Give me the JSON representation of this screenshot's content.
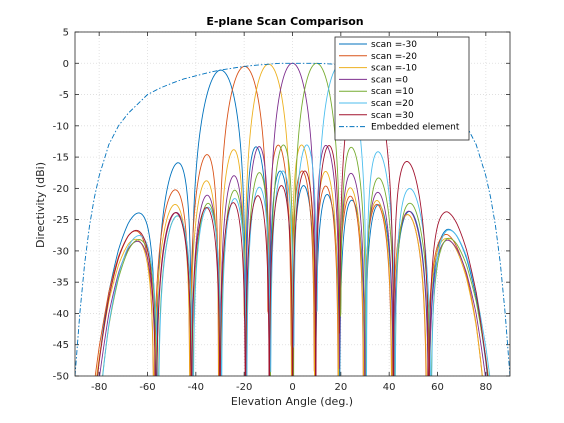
{
  "chart_data": {
    "type": "line",
    "title": "E-plane Scan Comparison",
    "xlabel": "Elevation Angle (deg.)",
    "ylabel": "Directivity (dBi)",
    "xlim": [
      -90,
      90
    ],
    "ylim": [
      -50,
      5
    ],
    "xticks": [
      -80,
      -60,
      -40,
      -20,
      0,
      20,
      40,
      60,
      80
    ],
    "yticks": [
      5,
      0,
      -5,
      -10,
      -15,
      -20,
      -25,
      -30,
      -35,
      -40,
      -45,
      -50
    ],
    "xtick_labels": [
      "-80",
      "-60",
      "-40",
      "-20",
      "0",
      "20",
      "40",
      "60",
      "80"
    ],
    "ytick_labels": [
      "5",
      "0",
      "-5",
      "-10",
      "-15",
      "-20",
      "-25",
      "-30",
      "-35",
      "-40",
      "-45",
      "-50"
    ],
    "grid": true,
    "legend_position": "top-right",
    "series": [
      {
        "name": "scan =-30",
        "color": "#0072BD",
        "style": "solid",
        "scan_deg": -30,
        "peak_db": 0,
        "sidelobe_peaks_db": [
          [
            -48,
            -15.8
          ],
          [
            -68,
            -24.5
          ],
          [
            -10,
            -20
          ],
          [
            20,
            -23
          ],
          [
            40,
            -25
          ]
        ]
      },
      {
        "name": "scan =-20",
        "color": "#D95319",
        "style": "solid",
        "scan_deg": -20,
        "peak_db": 0,
        "sidelobe_peaks_db": [
          [
            -36,
            -14.5
          ],
          [
            -56,
            -21
          ],
          [
            0,
            -17
          ],
          [
            24,
            -21
          ],
          [
            50,
            -25
          ]
        ]
      },
      {
        "name": "scan =-10",
        "color": "#EDB120",
        "style": "solid",
        "scan_deg": -10,
        "peak_db": 0,
        "sidelobe_peaks_db": [
          [
            -26,
            -13.5
          ],
          [
            -46,
            -20
          ],
          [
            10,
            -14.5
          ],
          [
            34,
            -20
          ],
          [
            60,
            -25
          ]
        ]
      },
      {
        "name": "scan =0",
        "color": "#7E2F8E",
        "style": "solid",
        "scan_deg": 0,
        "peak_db": 0,
        "sidelobe_peaks_db": [
          [
            -16,
            -13.5
          ],
          [
            16,
            -13.5
          ],
          [
            -36,
            -18
          ],
          [
            36,
            -18
          ],
          [
            -60,
            -24
          ],
          [
            60,
            -24
          ]
        ]
      },
      {
        "name": "scan =10",
        "color": "#77AC30",
        "style": "solid",
        "scan_deg": 10,
        "peak_db": 0,
        "sidelobe_peaks_db": [
          [
            26,
            -13.5
          ],
          [
            46,
            -20
          ],
          [
            -10,
            -14.5
          ],
          [
            -34,
            -20
          ],
          [
            -60,
            -25
          ]
        ]
      },
      {
        "name": "scan =20",
        "color": "#4DBEEE",
        "style": "solid",
        "scan_deg": 20,
        "peak_db": 0,
        "sidelobe_peaks_db": [
          [
            36,
            -14.5
          ],
          [
            56,
            -21
          ],
          [
            0,
            -17
          ],
          [
            -24,
            -21
          ],
          [
            -50,
            -25
          ]
        ]
      },
      {
        "name": "scan =30",
        "color": "#A2142F",
        "style": "solid",
        "scan_deg": 30,
        "peak_db": 0,
        "sidelobe_peaks_db": [
          [
            48,
            -15.8
          ],
          [
            68,
            -24.5
          ],
          [
            10,
            -20
          ],
          [
            -20,
            -23
          ],
          [
            -40,
            -25
          ]
        ]
      },
      {
        "name": "Embedded element",
        "color": "#0072BD",
        "style": "dashdot",
        "x": [
          -90,
          -88,
          -86,
          -84,
          -82,
          -80,
          -76,
          -72,
          -68,
          -64,
          -60,
          -55,
          -50,
          -45,
          -40,
          -35,
          -30,
          -25,
          -20,
          -15,
          -10,
          -5,
          0,
          10,
          20,
          30,
          40,
          45,
          50,
          55,
          60,
          64,
          68,
          72,
          76,
          80,
          82,
          84,
          86,
          88,
          90
        ],
        "y": [
          -50,
          -40,
          -32,
          -26,
          -21.5,
          -18,
          -13,
          -10,
          -8,
          -6.5,
          -5,
          -4,
          -3.2,
          -2.5,
          -2,
          -1.5,
          -1.1,
          -0.8,
          -0.5,
          -0.3,
          -0.15,
          0,
          0,
          0,
          -0.2,
          -0.6,
          -1.5,
          -2.3,
          -3,
          -4,
          -5,
          -6.3,
          -8,
          -10,
          -13,
          -18,
          -21.5,
          -26,
          -32,
          -40,
          -50
        ]
      }
    ]
  }
}
